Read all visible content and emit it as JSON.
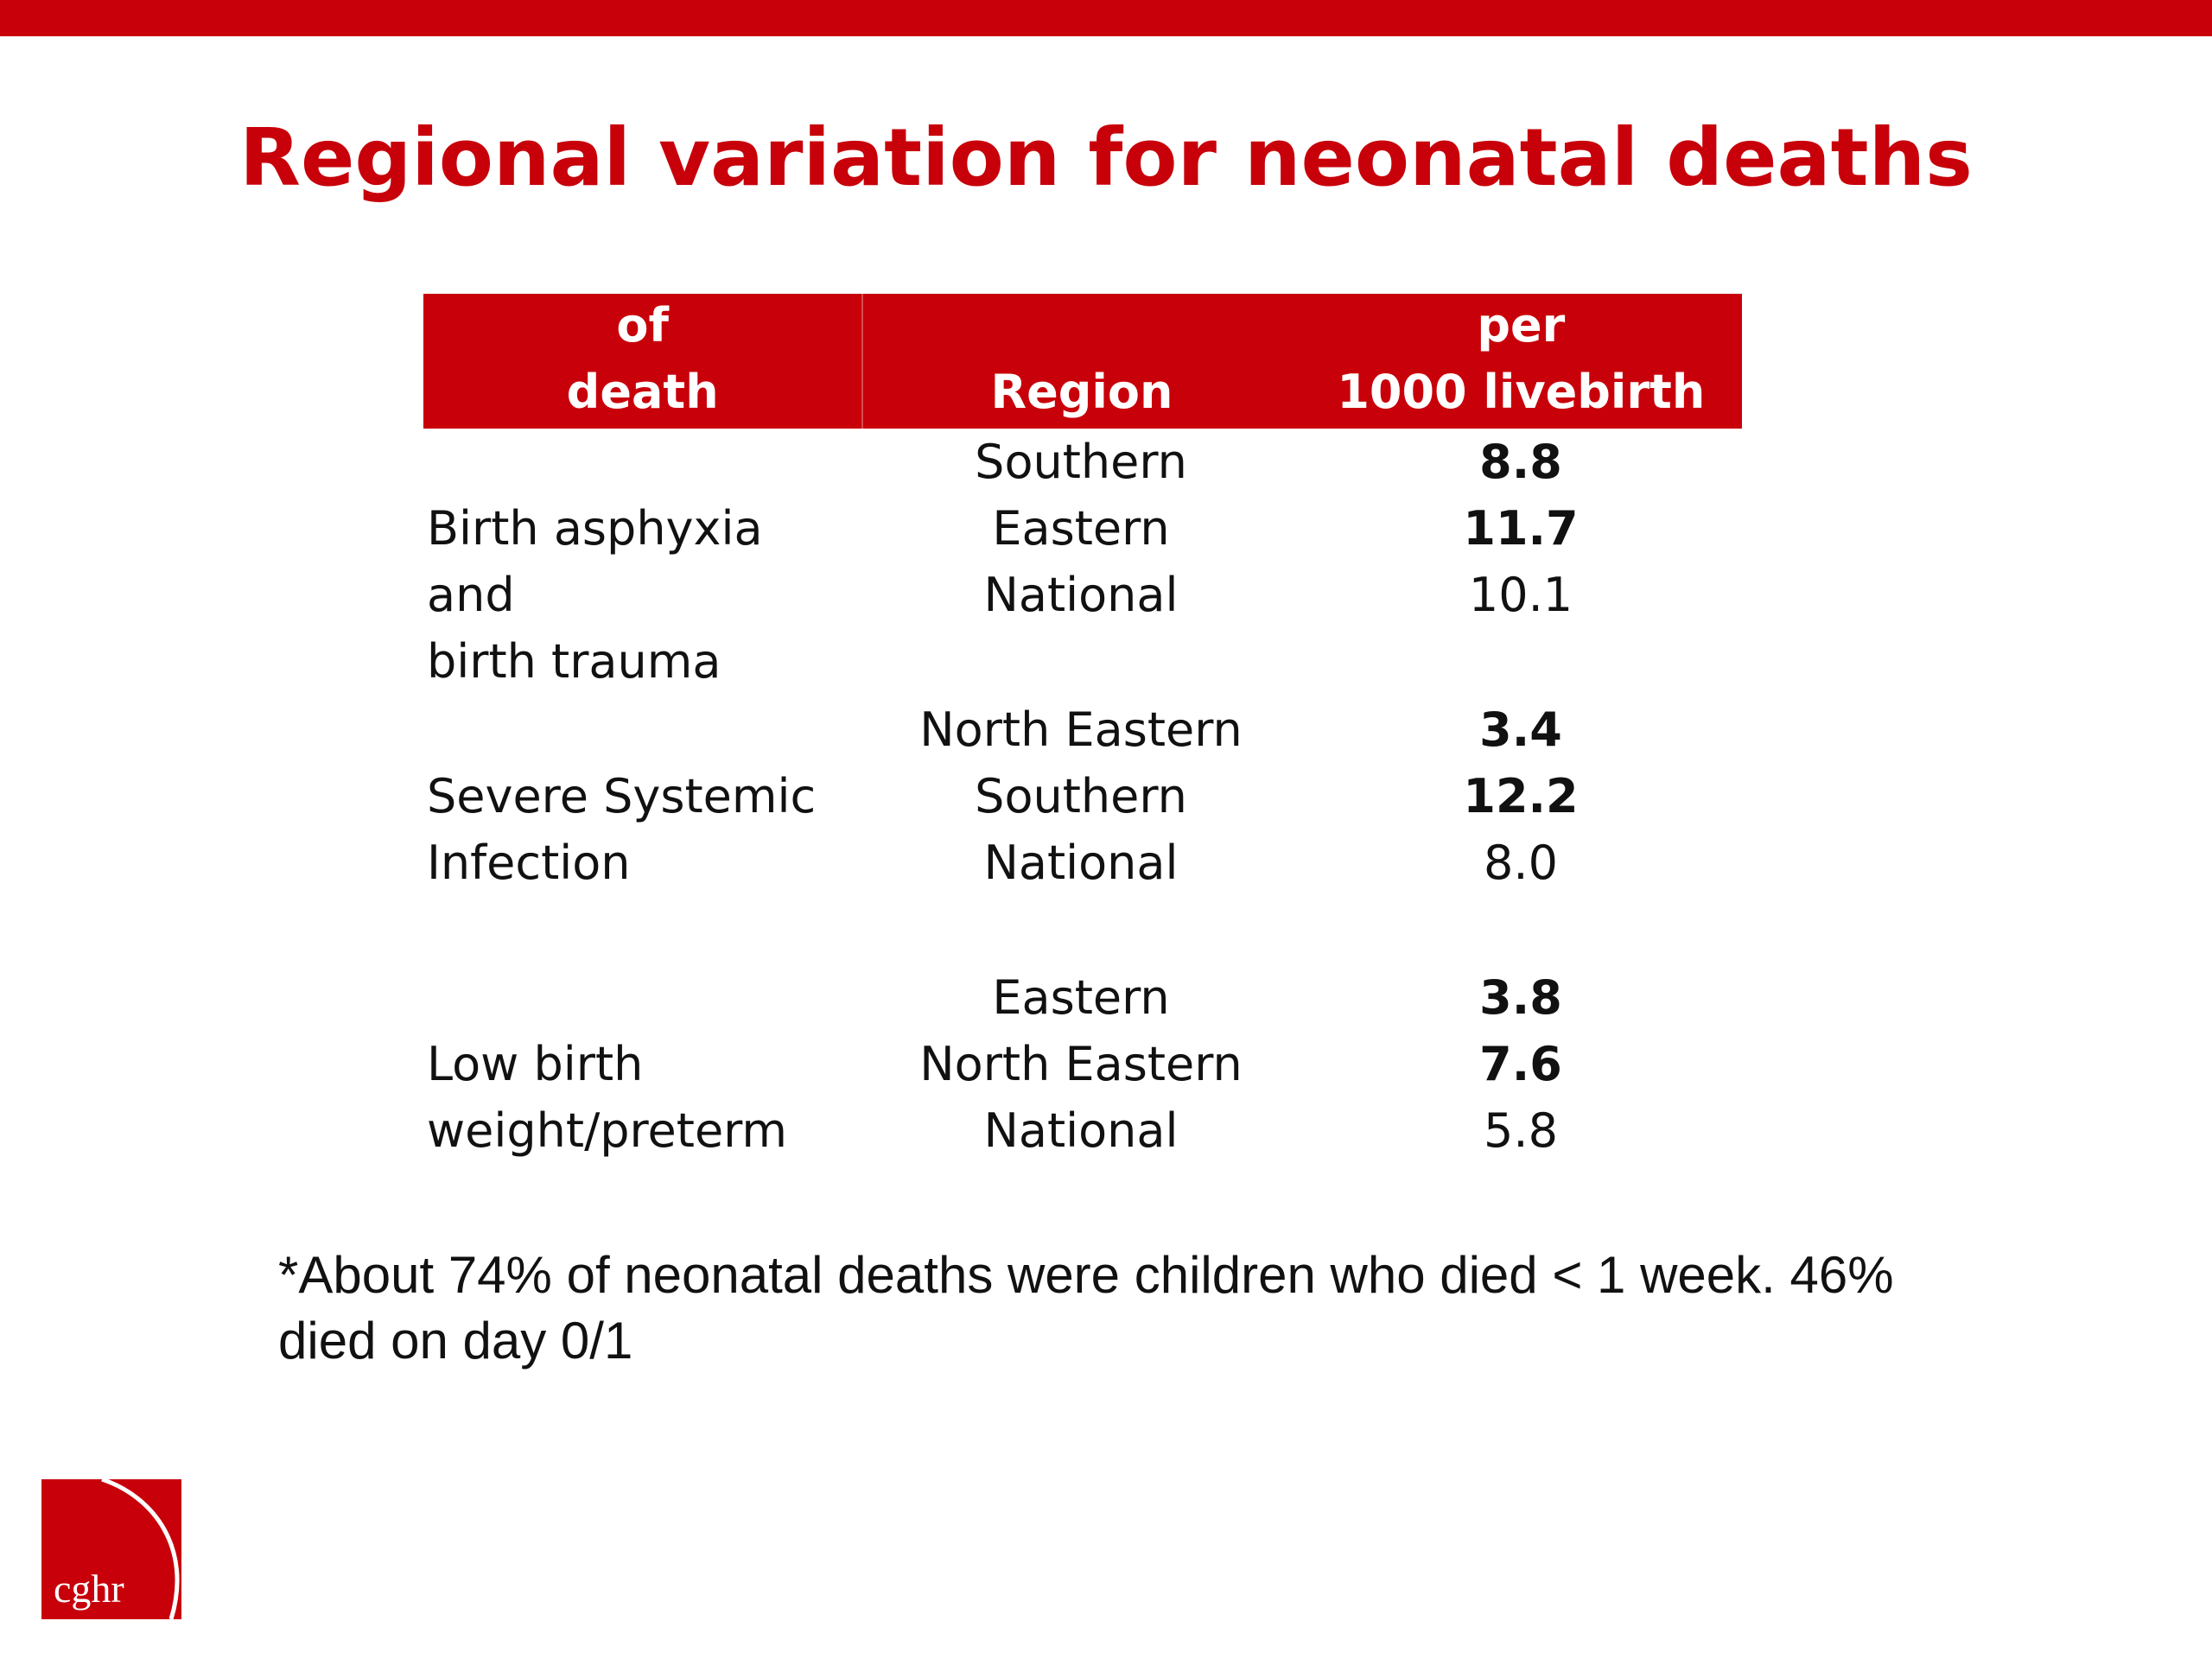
{
  "slide": {
    "title": "Regional variation for neonatal deaths"
  },
  "table": {
    "headers": {
      "cause_line1": "Leading causes of",
      "cause_line2": "death",
      "region": "Region",
      "rate_line1": "Mortality rate per",
      "rate_line2": "1000 livebirth"
    },
    "groups": [
      {
        "cause_line1": "Birth asphyxia and",
        "cause_line2": "birth trauma",
        "rows": [
          {
            "region": "Southern",
            "rate": "8.8"
          },
          {
            "region": "Eastern",
            "rate": "11.7"
          },
          {
            "region": "National",
            "rate": "10.1"
          }
        ]
      },
      {
        "cause_line1": "Severe Systemic",
        "cause_line2": "Infection",
        "rows": [
          {
            "region": "North Eastern",
            "rate": "3.4"
          },
          {
            "region": "Southern",
            "rate": "12.2"
          },
          {
            "region": "National",
            "rate": "8.0"
          }
        ]
      },
      {
        "cause_line1": "Low birth",
        "cause_line2": "weight/preterm",
        "rows": [
          {
            "region": "Eastern",
            "rate": "3.8"
          },
          {
            "region": "North Eastern",
            "rate": "7.6"
          },
          {
            "region": "National",
            "rate": "5.8"
          }
        ]
      }
    ]
  },
  "footnote": {
    "line1": "*About 74% of neonatal deaths were children who died < 1 week. 46%",
    "line2": "died on day 0/1"
  },
  "logo": {
    "text": "cghr"
  },
  "colors": {
    "brand_red": "#c8000a"
  }
}
